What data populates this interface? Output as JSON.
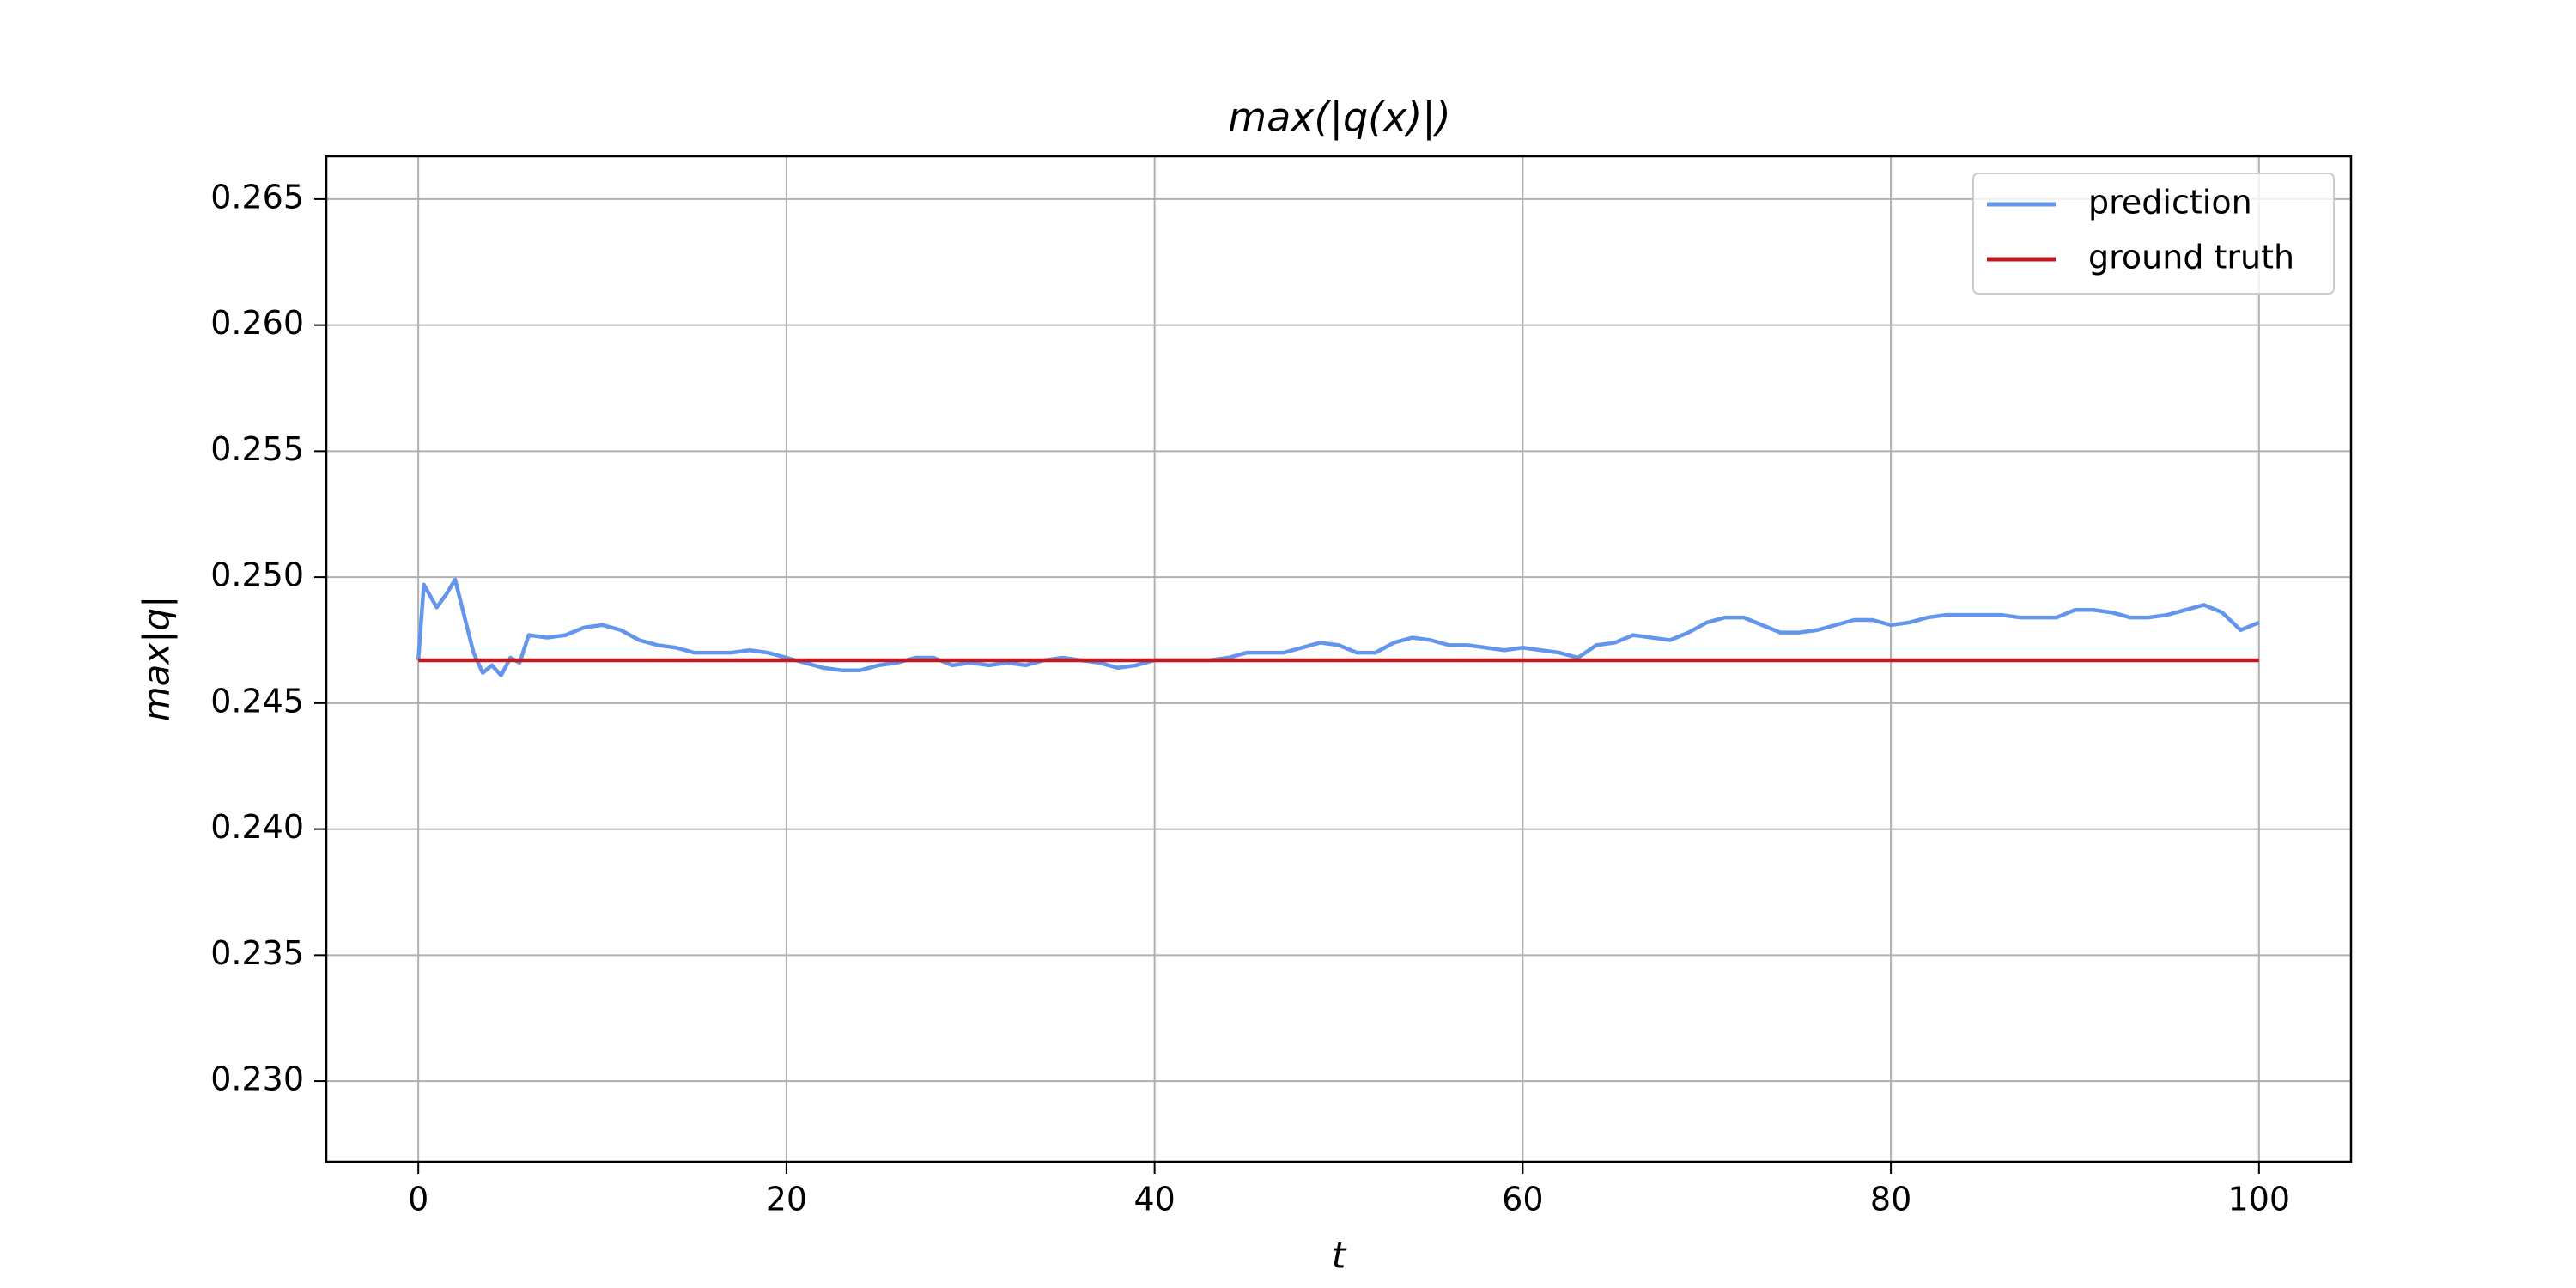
{
  "chart_data": {
    "type": "line",
    "title": "max(|q(x)|)",
    "xlabel": "t",
    "ylabel": "max|q|",
    "xlim": [
      -5,
      105
    ],
    "xticks": [
      0,
      20,
      40,
      60,
      80,
      100
    ],
    "ylim": [
      0.2268,
      0.2667
    ],
    "yticks": [
      {
        "value": 0.23,
        "label": "0.230"
      },
      {
        "value": 0.235,
        "label": "0.235"
      },
      {
        "value": 0.24,
        "label": "0.240"
      },
      {
        "value": 0.245,
        "label": "0.245"
      },
      {
        "value": 0.25,
        "label": "0.250"
      },
      {
        "value": 0.255,
        "label": "0.255"
      },
      {
        "value": 0.26,
        "label": "0.260"
      },
      {
        "value": 0.265,
        "label": "0.265"
      }
    ],
    "grid": true,
    "legend": "upper right",
    "series": [
      {
        "name": "prediction",
        "color": "#6495ed",
        "x": [
          0,
          0.3,
          1,
          1.5,
          2,
          3,
          3.5,
          4,
          4.5,
          5,
          5.5,
          6,
          7,
          8,
          9,
          10,
          11,
          12,
          13,
          14,
          15,
          16,
          17,
          18,
          19,
          20,
          21,
          22,
          23,
          24,
          25,
          26,
          27,
          28,
          29,
          30,
          31,
          32,
          33,
          34,
          35,
          36,
          37,
          38,
          39,
          40,
          41,
          42,
          43,
          44,
          45,
          46,
          47,
          48,
          49,
          50,
          51,
          52,
          53,
          54,
          55,
          56,
          57,
          58,
          59,
          60,
          61,
          62,
          63,
          64,
          65,
          66,
          67,
          68,
          69,
          70,
          71,
          72,
          73,
          74,
          75,
          76,
          77,
          78,
          79,
          80,
          81,
          82,
          83,
          84,
          85,
          86,
          87,
          88,
          89,
          90,
          91,
          92,
          93,
          94,
          95,
          96,
          97,
          98,
          99,
          100
        ],
        "values": [
          0.2467,
          0.2497,
          0.2488,
          0.2493,
          0.2499,
          0.247,
          0.2462,
          0.2465,
          0.2461,
          0.2468,
          0.2466,
          0.2477,
          0.2476,
          0.2477,
          0.248,
          0.2481,
          0.2479,
          0.2475,
          0.2473,
          0.2472,
          0.247,
          0.247,
          0.247,
          0.2471,
          0.247,
          0.2468,
          0.2466,
          0.2464,
          0.2463,
          0.2463,
          0.2465,
          0.2466,
          0.2468,
          0.2468,
          0.2465,
          0.2466,
          0.2465,
          0.2466,
          0.2465,
          0.2467,
          0.2468,
          0.2467,
          0.2466,
          0.2464,
          0.2465,
          0.2467,
          0.2467,
          0.2467,
          0.2467,
          0.2468,
          0.247,
          0.247,
          0.247,
          0.2472,
          0.2474,
          0.2473,
          0.247,
          0.247,
          0.2474,
          0.2476,
          0.2475,
          0.2473,
          0.2473,
          0.2472,
          0.2471,
          0.2472,
          0.2471,
          0.247,
          0.2468,
          0.2473,
          0.2474,
          0.2477,
          0.2476,
          0.2475,
          0.2478,
          0.2482,
          0.2484,
          0.2484,
          0.2481,
          0.2478,
          0.2478,
          0.2479,
          0.2481,
          0.2483,
          0.2483,
          0.2481,
          0.2482,
          0.2484,
          0.2485,
          0.2485,
          0.2485,
          0.2485,
          0.2484,
          0.2484,
          0.2484,
          0.2487,
          0.2487,
          0.2486,
          0.2484,
          0.2484,
          0.2485,
          0.2487,
          0.2489,
          0.2486,
          0.2479,
          0.2482
        ]
      },
      {
        "name": "ground truth",
        "color": "#c0191f",
        "x": [
          0,
          100
        ],
        "values": [
          0.2467,
          0.2467
        ]
      }
    ]
  }
}
